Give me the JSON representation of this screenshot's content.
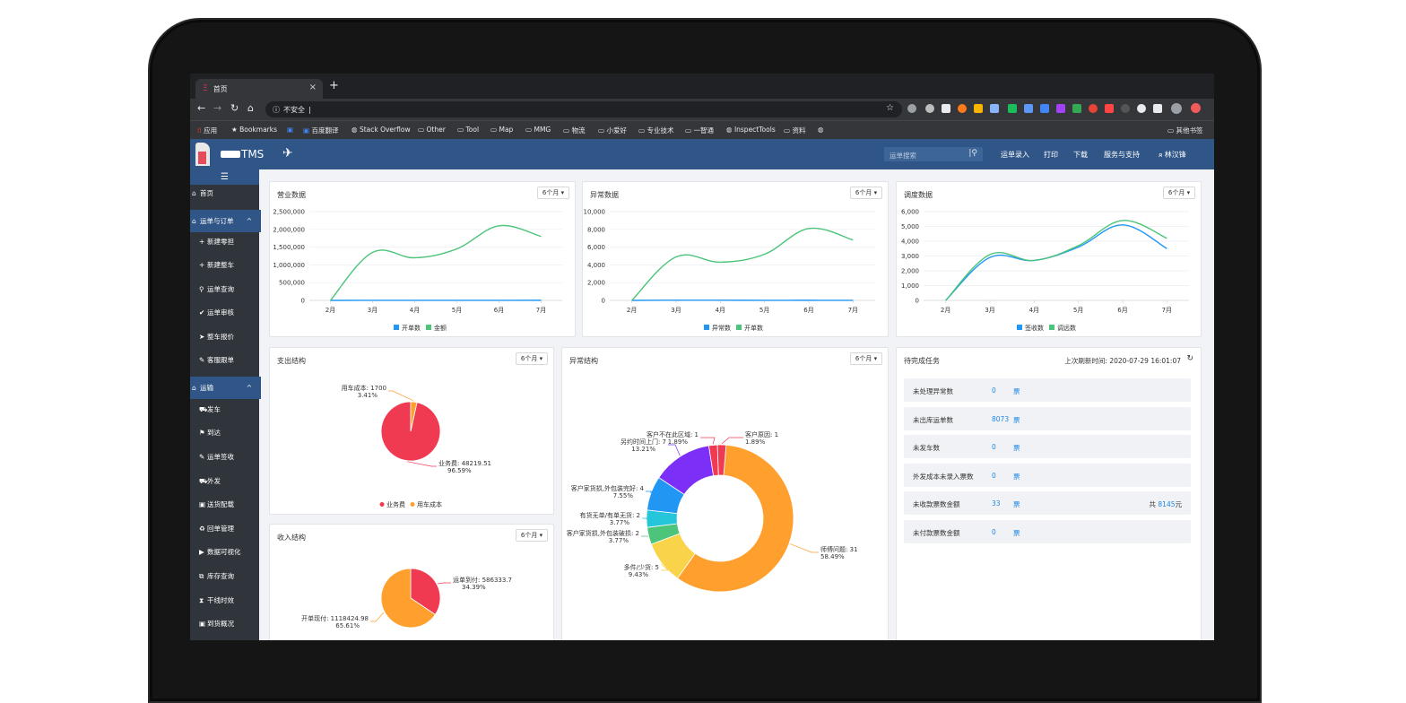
{
  "browser": {
    "tab_title": "首页",
    "tab_close": "×",
    "new_tab": "+",
    "url_security": "不安全",
    "url_value": "",
    "bookmarks": [
      "应用",
      "Bookmarks",
      "百度翻译",
      "Stack Overflow",
      "Other",
      "Tool",
      "Map",
      "MMG",
      "物流",
      "小爱好",
      "专业技术",
      "一智通",
      "InspectTools",
      "资料"
    ],
    "bookmarks_other": "其他书签"
  },
  "header": {
    "logo_text": "TMS",
    "search_placeholder": "运单搜索",
    "menu": [
      "运单录入",
      "打印",
      "下载",
      "服务与支持"
    ],
    "user": "林汉锋"
  },
  "sidebar": {
    "items": [
      {
        "label": "首页",
        "icon": "home-icon",
        "group": false
      },
      {
        "label": "运单与订单",
        "icon": "home-icon",
        "group": true,
        "caret": "^"
      },
      {
        "label": "新建零担",
        "icon": "plus-icon",
        "group": false
      },
      {
        "label": "新建整车",
        "icon": "plus-icon",
        "group": false
      },
      {
        "label": "运单查询",
        "icon": "search-icon",
        "group": false
      },
      {
        "label": "运单审核",
        "icon": "check-icon",
        "group": false
      },
      {
        "label": "整车报价",
        "icon": "send-icon",
        "group": false
      },
      {
        "label": "客服跟单",
        "icon": "edit-icon",
        "group": false
      },
      {
        "label": "运输",
        "icon": "home-icon",
        "group": true,
        "caret": "^"
      },
      {
        "label": "发车",
        "icon": "car-icon",
        "group": false
      },
      {
        "label": "到达",
        "icon": "flag-icon",
        "group": false
      },
      {
        "label": "运单签收",
        "icon": "edit-icon",
        "group": false
      },
      {
        "label": "外发",
        "icon": "car-icon",
        "group": false
      },
      {
        "label": "送货配载",
        "icon": "box-icon",
        "group": false
      },
      {
        "label": "回单管理",
        "icon": "recycle-icon",
        "group": false
      },
      {
        "label": "数据可视化",
        "icon": "video-icon",
        "group": false
      },
      {
        "label": "库存查询",
        "icon": "cubes-icon",
        "group": false
      },
      {
        "label": "干线时效",
        "icon": "hourglass-icon",
        "group": false
      },
      {
        "label": "到货概况",
        "icon": "box-icon",
        "group": false
      }
    ]
  },
  "cards": {
    "period_label": "6个月 ▾",
    "business": {
      "title": "营业数据"
    },
    "exception": {
      "title": "异常数据"
    },
    "dispatch": {
      "title": "调度数据"
    },
    "expense": {
      "title": "支出结构"
    },
    "exception_structure": {
      "title": "异常结构"
    },
    "income": {
      "title": "收入结构"
    },
    "tasks": {
      "title": "待完成任务",
      "refresh_label": "上次刷新时间:",
      "refresh_time": "2020-07-29 16:01:07",
      "rows": [
        {
          "label": "未处理异常数",
          "value": "0",
          "unit": "票"
        },
        {
          "label": "未出库运单数",
          "value": "8073",
          "unit": "票"
        },
        {
          "label": "未发车数",
          "value": "0",
          "unit": "票"
        },
        {
          "label": "外发成本未录入票数",
          "value": "0",
          "unit": "票"
        },
        {
          "label": "未收款票数金额",
          "value": "33",
          "unit": "票",
          "extra_prefix": "共",
          "extra_value": "8145",
          "extra_suffix": "元"
        },
        {
          "label": "未付款票数金额",
          "value": "0",
          "unit": "票"
        }
      ]
    }
  },
  "colors": {
    "blue": "#2196f3",
    "green": "#4cc47a",
    "red": "#ef3a52",
    "orange": "#ff9f2e",
    "purple": "#7b2ff7",
    "teal": "#26c6da",
    "yellow": "#f9d34a",
    "header": "#2f5687"
  },
  "chart_data": [
    {
      "type": "line",
      "title": "营业数据",
      "categories": [
        "2月",
        "3月",
        "4月",
        "5月",
        "6月",
        "7月"
      ],
      "ylim": [
        0,
        2500000
      ],
      "yticks": [
        "2,500,000",
        "2,000,000",
        "1,500,000",
        "1,000,000",
        "500,000",
        "0"
      ],
      "series": [
        {
          "name": "开单数",
          "values": [
            0,
            1000,
            1500,
            2000,
            2500,
            3000
          ]
        },
        {
          "name": "金额",
          "values": [
            0,
            1350000,
            1200000,
            1450000,
            2100000,
            1800000
          ]
        }
      ]
    },
    {
      "type": "line",
      "title": "异常数据",
      "categories": [
        "2月",
        "3月",
        "4月",
        "5月",
        "6月",
        "7月"
      ],
      "ylim": [
        0,
        10000
      ],
      "yticks": [
        "10,000",
        "8,000",
        "6,000",
        "4,000",
        "2,000",
        "0"
      ],
      "series": [
        {
          "name": "异常数",
          "values": [
            0,
            20,
            15,
            10,
            12,
            8
          ]
        },
        {
          "name": "开单数",
          "values": [
            0,
            4900,
            4300,
            5200,
            8100,
            6800
          ]
        }
      ]
    },
    {
      "type": "line",
      "title": "调度数据",
      "categories": [
        "2月",
        "3月",
        "4月",
        "5月",
        "6月",
        "7月"
      ],
      "ylim": [
        0,
        6000
      ],
      "yticks": [
        "6,000",
        "5,000",
        "4,000",
        "3,000",
        "2,000",
        "1,000",
        "0"
      ],
      "series": [
        {
          "name": "签收数",
          "values": [
            0,
            2900,
            2700,
            3600,
            5100,
            3500
          ]
        },
        {
          "name": "调远数",
          "values": [
            0,
            3100,
            2700,
            3700,
            5400,
            4200
          ]
        }
      ]
    },
    {
      "type": "pie",
      "title": "支出结构",
      "series": [
        {
          "name": "业务费",
          "value": 48219.51,
          "label": "业务费: 48219.51",
          "percent": "96.59%"
        },
        {
          "name": "用车成本",
          "value": 1700,
          "label": "用车成本: 1700",
          "percent": "3.41%"
        }
      ]
    },
    {
      "type": "pie",
      "title": "异常结构",
      "series": [
        {
          "name": "师傅问题",
          "value": 31,
          "label": "师傅问题: 31",
          "percent": "58.49%"
        },
        {
          "name": "多件/少货",
          "value": 5,
          "label": "多件/少货: 5",
          "percent": "9.43%"
        },
        {
          "name": "客户家货损,外包装破损",
          "value": 2,
          "label": "客户家货损,外包装破损: 2",
          "percent": "3.77%"
        },
        {
          "name": "有货无单/有单无货",
          "value": 2,
          "label": "有货无单/有单无货: 2",
          "percent": "3.77%"
        },
        {
          "name": "客户家货损,外包装完好",
          "value": 4,
          "label": "客户家货损,外包装完好: 4",
          "percent": "7.55%"
        },
        {
          "name": "另约时间上门",
          "value": 7,
          "label": "另约时间上门: 7",
          "percent": "13.21%"
        },
        {
          "name": "客户不在此区域",
          "value": 1,
          "label": "客户不在此区域: 1",
          "percent": "1.89%"
        },
        {
          "name": "客户原因",
          "value": 1,
          "label": "客户原因: 1",
          "percent": "1.89%"
        }
      ]
    },
    {
      "type": "pie",
      "title": "收入结构",
      "series": [
        {
          "name": "运单到付",
          "value": 586333.7,
          "label": "运单到付: 586333.7",
          "percent": "34.39%"
        },
        {
          "name": "开单现付",
          "value": 1118424.98,
          "label": "开单现付: 1118424.98",
          "percent": "65.61%"
        }
      ]
    }
  ]
}
